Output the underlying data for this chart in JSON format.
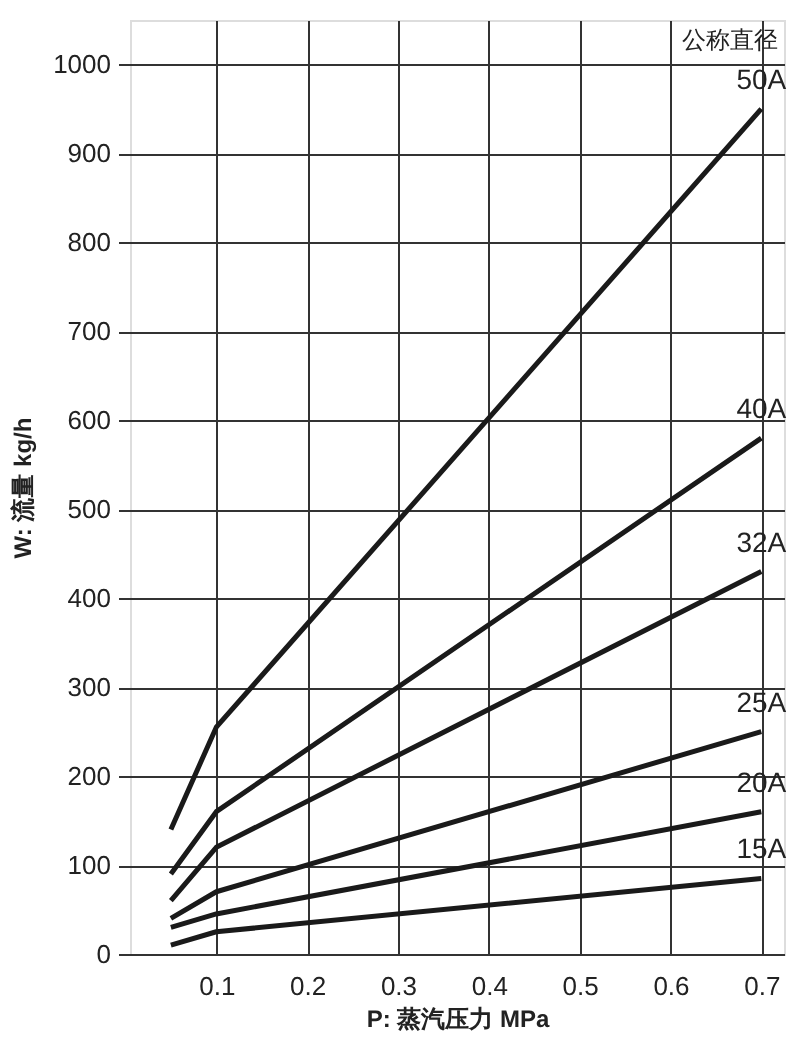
{
  "chart_data": {
    "type": "line",
    "xlabel": "P: 蒸汽压力 MPa",
    "ylabel": "W: 流量 kg/h",
    "legend_title": "公称直径",
    "x": [
      0.05,
      0.1,
      0.7
    ],
    "series": [
      {
        "name": "50A",
        "color": "#1a1a1a",
        "values": [
          140,
          255,
          950
        ]
      },
      {
        "name": "40A",
        "color": "#1a1a1a",
        "values": [
          90,
          160,
          580
        ]
      },
      {
        "name": "32A",
        "color": "#1a1a1a",
        "values": [
          60,
          120,
          430
        ]
      },
      {
        "name": "25A",
        "color": "#1a1a1a",
        "values": [
          40,
          70,
          250
        ]
      },
      {
        "name": "20A",
        "color": "#1a1a1a",
        "values": [
          30,
          45,
          160
        ]
      },
      {
        "name": "15A",
        "color": "#1a1a1a",
        "values": [
          10,
          25,
          85
        ]
      }
    ],
    "xlim": [
      0.005,
      0.725
    ],
    "ylim": [
      0,
      1050
    ],
    "xticks": [
      0.1,
      0.2,
      0.3,
      0.4,
      0.5,
      0.6,
      0.7
    ],
    "yticks": [
      0,
      100,
      200,
      300,
      400,
      500,
      600,
      700,
      800,
      900,
      {
        "value": 1000,
        "label": "1000"
      }
    ],
    "grid": true,
    "legend": "top right",
    "marker": "none",
    "line_style": "solid"
  }
}
